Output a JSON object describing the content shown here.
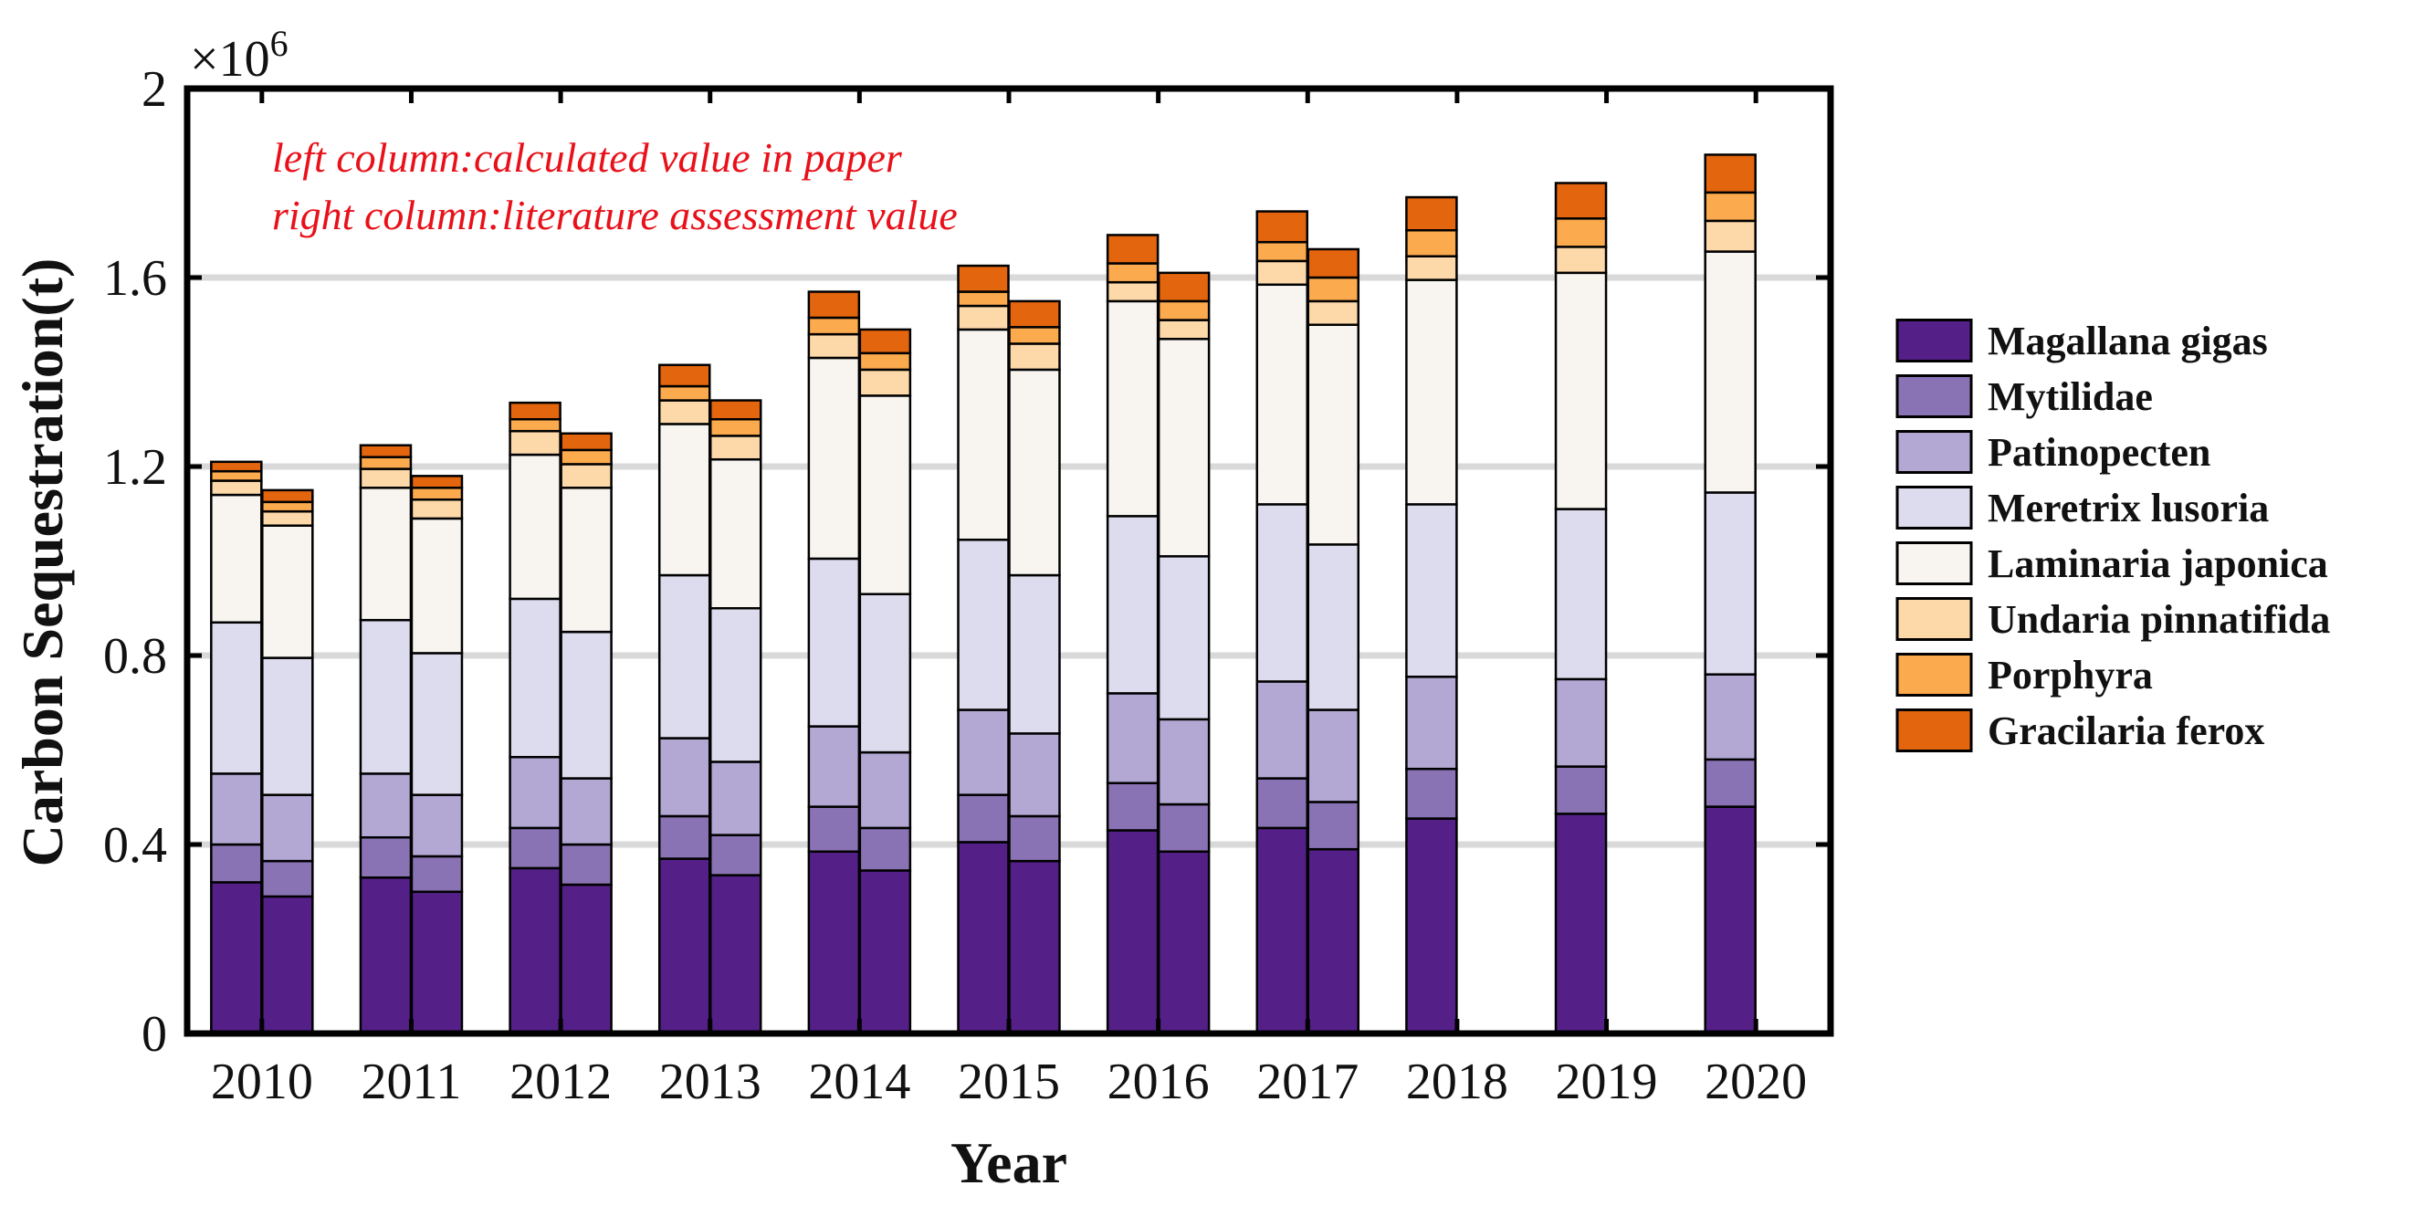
{
  "chart_data": {
    "type": "stacked-bar",
    "xlabel": "Year",
    "ylabel": "Carbon Sequestration(t)",
    "y_multiplier_label": "×10",
    "y_multiplier_exp": "6",
    "y_multiplier": 1000000,
    "ylim": [
      0,
      2
    ],
    "yticks": [
      0,
      0.4,
      0.8,
      1.2,
      1.6,
      2
    ],
    "ytick_labels": [
      "0",
      "0.4",
      "0.8",
      "1.2",
      "1.6",
      "2"
    ],
    "grid": "horizontal",
    "legend_position": "right",
    "annotations": [
      "left column:calculated value in paper",
      "right column:literature assessment value"
    ],
    "series": [
      {
        "name": "Magallana gigas",
        "color": "#542088"
      },
      {
        "name": "Mytilidae",
        "color": "#8a73b4"
      },
      {
        "name": "Patinopecten",
        "color": "#b3a7d4"
      },
      {
        "name": "Meretrix lusoria",
        "color": "#dcdcee"
      },
      {
        "name": "Laminaria japonica",
        "color": "#f8f5f0"
      },
      {
        "name": "Undaria pinnatifida",
        "color": "#fdd9a9"
      },
      {
        "name": "Porphyra",
        "color": "#fbaa4d"
      },
      {
        "name": "Gracilaria ferox",
        "color": "#e3650e"
      }
    ],
    "categories": [
      "2010",
      "2011",
      "2012",
      "2013",
      "2014",
      "2015",
      "2016",
      "2017",
      "2018",
      "2019",
      "2020"
    ],
    "groups": [
      {
        "year": "2010",
        "calculated": [
          0.32,
          0.08,
          0.15,
          0.32,
          0.27,
          0.03,
          0.02,
          0.02
        ],
        "literature": [
          0.29,
          0.075,
          0.14,
          0.29,
          0.28,
          0.03,
          0.02,
          0.025
        ]
      },
      {
        "year": "2011",
        "calculated": [
          0.33,
          0.085,
          0.135,
          0.325,
          0.28,
          0.04,
          0.025,
          0.025
        ],
        "literature": [
          0.3,
          0.075,
          0.13,
          0.3,
          0.285,
          0.04,
          0.025,
          0.025
        ]
      },
      {
        "year": "2012",
        "calculated": [
          0.35,
          0.085,
          0.15,
          0.335,
          0.305,
          0.05,
          0.025,
          0.035
        ],
        "literature": [
          0.315,
          0.085,
          0.14,
          0.31,
          0.305,
          0.05,
          0.03,
          0.035
        ]
      },
      {
        "year": "2013",
        "calculated": [
          0.37,
          0.09,
          0.165,
          0.345,
          0.32,
          0.05,
          0.03,
          0.045
        ],
        "literature": [
          0.335,
          0.085,
          0.155,
          0.325,
          0.315,
          0.05,
          0.035,
          0.04
        ]
      },
      {
        "year": "2014",
        "calculated": [
          0.385,
          0.095,
          0.17,
          0.355,
          0.425,
          0.05,
          0.035,
          0.055
        ],
        "literature": [
          0.345,
          0.09,
          0.16,
          0.335,
          0.42,
          0.055,
          0.035,
          0.05
        ]
      },
      {
        "year": "2015",
        "calculated": [
          0.405,
          0.1,
          0.18,
          0.36,
          0.445,
          0.05,
          0.03,
          0.055
        ],
        "literature": [
          0.365,
          0.095,
          0.175,
          0.335,
          0.435,
          0.055,
          0.035,
          0.055
        ]
      },
      {
        "year": "2016",
        "calculated": [
          0.43,
          0.1,
          0.19,
          0.375,
          0.455,
          0.04,
          0.04,
          0.06
        ],
        "literature": [
          0.385,
          0.1,
          0.18,
          0.345,
          0.46,
          0.04,
          0.04,
          0.06
        ]
      },
      {
        "year": "2017",
        "calculated": [
          0.435,
          0.105,
          0.205,
          0.375,
          0.465,
          0.05,
          0.04,
          0.065
        ],
        "literature": [
          0.39,
          0.1,
          0.195,
          0.35,
          0.465,
          0.05,
          0.05,
          0.06
        ]
      },
      {
        "year": "2018",
        "calculated": [
          0.455,
          0.105,
          0.195,
          0.365,
          0.475,
          0.05,
          0.055,
          0.07
        ],
        "literature": null
      },
      {
        "year": "2019",
        "calculated": [
          0.465,
          0.1,
          0.185,
          0.36,
          0.5,
          0.055,
          0.06,
          0.075
        ],
        "literature": null
      },
      {
        "year": "2020",
        "calculated": [
          0.48,
          0.1,
          0.18,
          0.385,
          0.51,
          0.065,
          0.06,
          0.08
        ],
        "literature": null
      }
    ]
  }
}
